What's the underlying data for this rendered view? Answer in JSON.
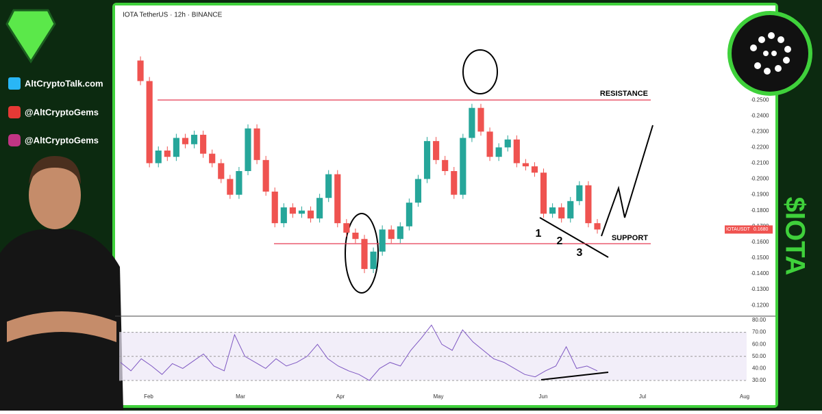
{
  "header": {
    "symbol": "IOTA TetherUS · 12h · BINANCE"
  },
  "social": [
    "AltCryptoTalk.com",
    "@AltCryptoGems",
    "@AltCryptoGems"
  ],
  "ticker": "$IOTA",
  "chart": {
    "ylim": [
      0.114,
      0.309
    ],
    "yticks": [
      {
        "value": 0.12,
        "label": "0.1200"
      },
      {
        "value": 0.13,
        "label": "0.1300"
      },
      {
        "value": 0.14,
        "label": "0.1400"
      },
      {
        "value": 0.15,
        "label": "0.1500"
      },
      {
        "value": 0.16,
        "label": "0.1600"
      },
      {
        "value": 0.17,
        "label": "0.1700"
      },
      {
        "value": 0.18,
        "label": "0.1800"
      },
      {
        "value": 0.19,
        "label": "0.1900"
      },
      {
        "value": 0.2,
        "label": "0.2000"
      },
      {
        "value": 0.21,
        "label": "0.2100"
      },
      {
        "value": 0.22,
        "label": "0.2200"
      },
      {
        "value": 0.23,
        "label": "0.2300"
      },
      {
        "value": 0.24,
        "label": "0.2400"
      },
      {
        "value": 0.25,
        "label": "0.2500"
      }
    ],
    "months": [
      "Feb",
      "Mar",
      "Apr",
      "May",
      "Jun",
      "Jul",
      "Aug"
    ],
    "price": [
      0.275,
      0.262,
      0.21,
      0.218,
      0.214,
      0.226,
      0.222,
      0.228,
      0.216,
      0.21,
      0.2,
      0.19,
      0.205,
      0.232,
      0.212,
      0.192,
      0.172,
      0.182,
      0.178,
      0.18,
      0.175,
      0.188,
      0.203,
      0.172,
      0.166,
      0.162,
      0.143,
      0.154,
      0.168,
      0.162,
      0.17,
      0.185,
      0.2,
      0.224,
      0.212,
      0.205,
      0.19,
      0.226,
      0.245,
      0.23,
      0.214,
      0.22,
      0.225,
      0.21,
      0.208,
      0.204,
      0.178,
      0.182,
      0.175,
      0.186,
      0.196,
      0.172,
      0.168
    ],
    "resistance": {
      "value": 0.25,
      "label": "RESISTANCE"
    },
    "support": {
      "value": 0.159,
      "label": "SUPPORT"
    },
    "points": [
      "1",
      "2",
      "3"
    ],
    "last": {
      "symbol": "IOTAUSDT",
      "value": 0.168,
      "label": "0.1680"
    },
    "rsi": {
      "ylim": [
        19.2,
        81.7
      ],
      "yticks": [
        {
          "value": 30,
          "label": "30.00"
        },
        {
          "value": 40,
          "label": "40.00"
        },
        {
          "value": 50,
          "label": "50.00"
        },
        {
          "value": 60,
          "label": "60.00"
        },
        {
          "value": 70,
          "label": "70.00"
        },
        {
          "value": 80,
          "label": "80.00"
        }
      ],
      "values": [
        45,
        38,
        48,
        42,
        35,
        44,
        40,
        46,
        52,
        42,
        38,
        68,
        50,
        45,
        40,
        48,
        42,
        45,
        50,
        60,
        48,
        42,
        38,
        35,
        30,
        40,
        45,
        42,
        55,
        65,
        76,
        60,
        55,
        72,
        62,
        55,
        48,
        45,
        40,
        35,
        33,
        38,
        42,
        58,
        40,
        42,
        38
      ]
    }
  }
}
